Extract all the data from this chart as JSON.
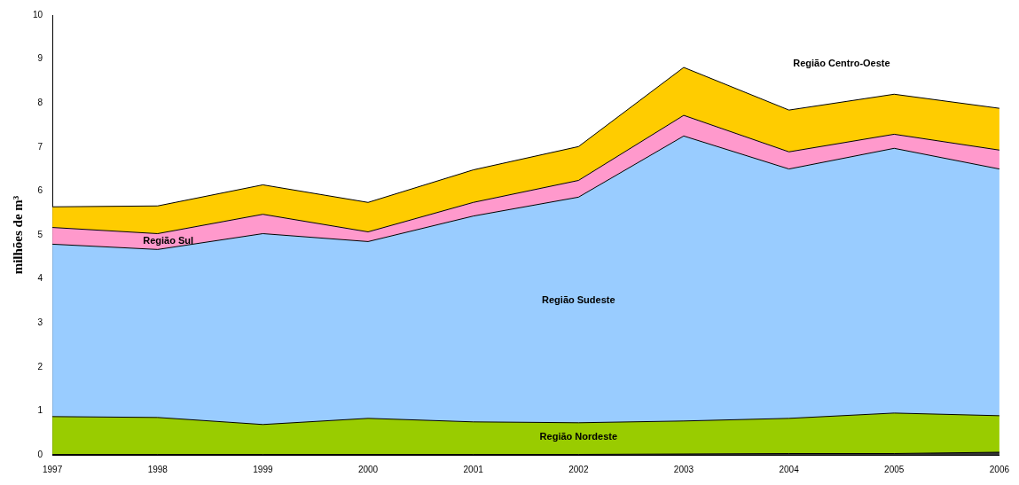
{
  "chart_data": {
    "type": "area",
    "stacked": true,
    "ylabel": "milhões de m³",
    "categories": [
      "1997",
      "1998",
      "1999",
      "2000",
      "2001",
      "2002",
      "2003",
      "2004",
      "2005",
      "2006"
    ],
    "series": [
      {
        "color": "#333333",
        "values": [
          0.01,
          0.01,
          0.01,
          0.01,
          0.01,
          0.01,
          0.02,
          0.03,
          0.03,
          0.06
        ]
      },
      {
        "name": "Região Nordeste",
        "color": "#99cc00",
        "values": [
          0.86,
          0.84,
          0.68,
          0.82,
          0.74,
          0.72,
          0.75,
          0.8,
          0.92,
          0.83
        ]
      },
      {
        "name": "Região Sudeste",
        "color": "#99ccff",
        "values": [
          3.92,
          3.82,
          4.34,
          4.02,
          4.68,
          5.13,
          6.48,
          5.67,
          6.02,
          5.61
        ]
      },
      {
        "name": "Região Sul",
        "color": "#ff99cc",
        "values": [
          0.38,
          0.36,
          0.44,
          0.22,
          0.31,
          0.38,
          0.47,
          0.39,
          0.32,
          0.43
        ]
      },
      {
        "name": "Região Centro-Oeste",
        "color": "#ffcc00",
        "values": [
          0.47,
          0.63,
          0.67,
          0.67,
          0.74,
          0.77,
          1.09,
          0.95,
          0.91,
          0.95
        ]
      }
    ],
    "ylim": [
      0,
      10
    ],
    "yticks": [
      0,
      1,
      2,
      3,
      4,
      5,
      6,
      7,
      8,
      9,
      10
    ],
    "grid": false,
    "legend": false
  }
}
